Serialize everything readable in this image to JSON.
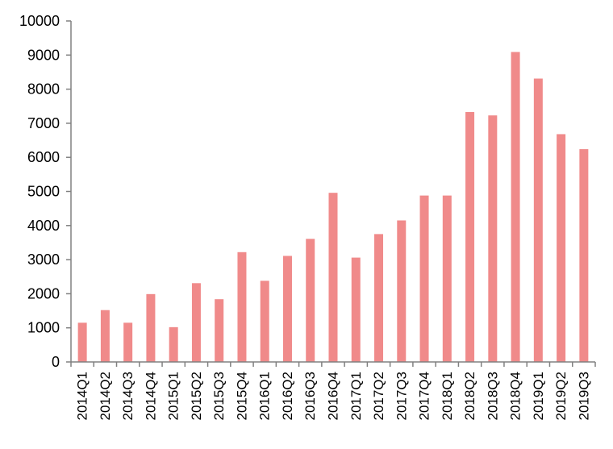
{
  "chart_data": {
    "type": "bar",
    "title": "",
    "xlabel": "",
    "ylabel": "",
    "ylim": [
      0,
      10000
    ],
    "yticks": [
      0,
      1000,
      2000,
      3000,
      4000,
      5000,
      6000,
      7000,
      8000,
      9000,
      10000
    ],
    "grid": false,
    "legend": "none",
    "categories": [
      "2014Q1",
      "2014Q2",
      "2014Q3",
      "2014Q4",
      "2015Q1",
      "2015Q2",
      "2015Q3",
      "2015Q4",
      "2016Q1",
      "2016Q2",
      "2016Q3",
      "2016Q4",
      "2017Q1",
      "2017Q2",
      "2017Q3",
      "2017Q4",
      "2018Q1",
      "2018Q2",
      "2018Q3",
      "2018Q4",
      "2019Q1",
      "2019Q2",
      "2019Q3"
    ],
    "values": [
      1150,
      1520,
      1150,
      1990,
      1020,
      2310,
      1840,
      3220,
      2380,
      3110,
      3610,
      4960,
      3060,
      3750,
      4150,
      4880,
      4880,
      7330,
      7230,
      9090,
      8310,
      6680,
      6240
    ],
    "colors": {
      "bar": "#f08a8a",
      "axis": "#808080"
    }
  }
}
